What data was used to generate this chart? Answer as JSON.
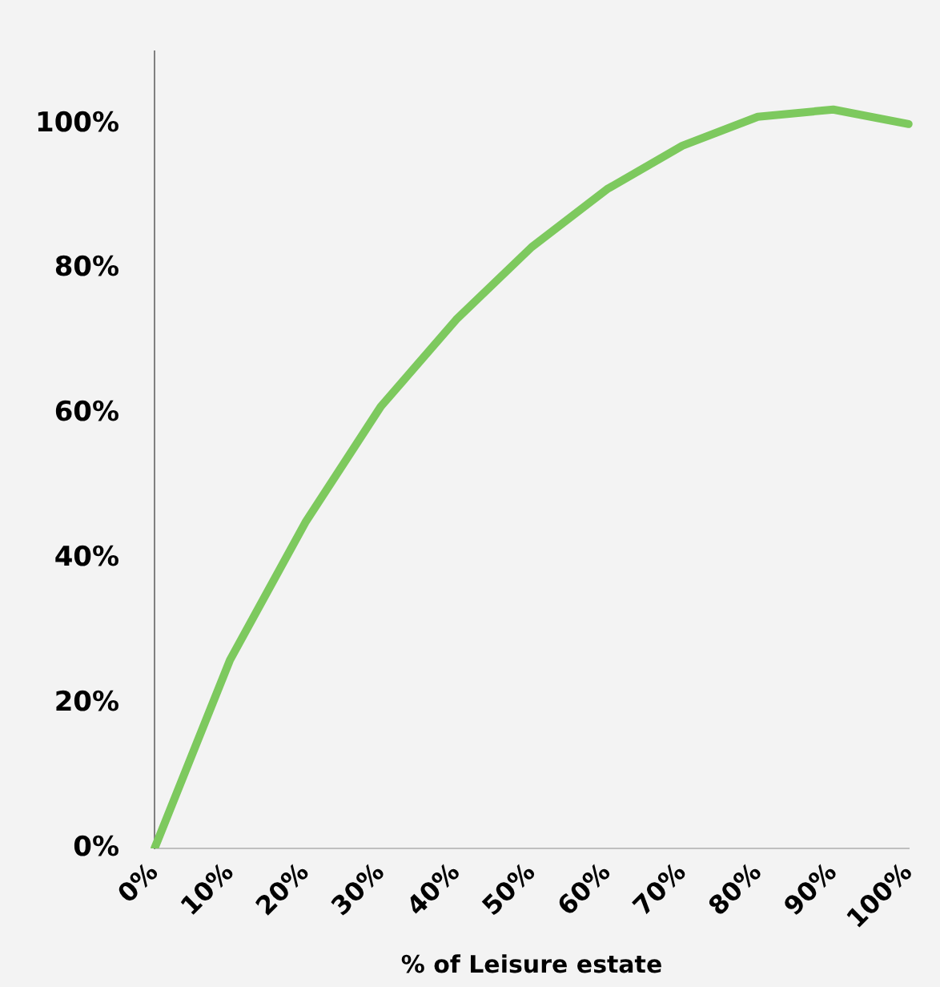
{
  "chart_data": {
    "type": "line",
    "xlabel": "% of Leisure estate",
    "categories": [
      "0%",
      "10%",
      "20%",
      "30%",
      "40%",
      "50%",
      "60%",
      "70%",
      "80%",
      "90%",
      "100%"
    ],
    "series": [
      {
        "color": "#7dc95e",
        "values": [
          0,
          26,
          45,
          61,
          73,
          83,
          91,
          97,
          101,
          102,
          100
        ]
      }
    ],
    "ylim": [
      0,
      110
    ],
    "yticks": [
      {
        "value": 0,
        "label": "0%"
      },
      {
        "value": 20,
        "label": "20%"
      },
      {
        "value": 40,
        "label": "40%"
      },
      {
        "value": 60,
        "label": "60%"
      },
      {
        "value": 80,
        "label": "80%"
      },
      {
        "value": 100,
        "label": "100%"
      }
    ],
    "grid": false,
    "legend": false,
    "marker": "none",
    "line_style": "solid"
  }
}
